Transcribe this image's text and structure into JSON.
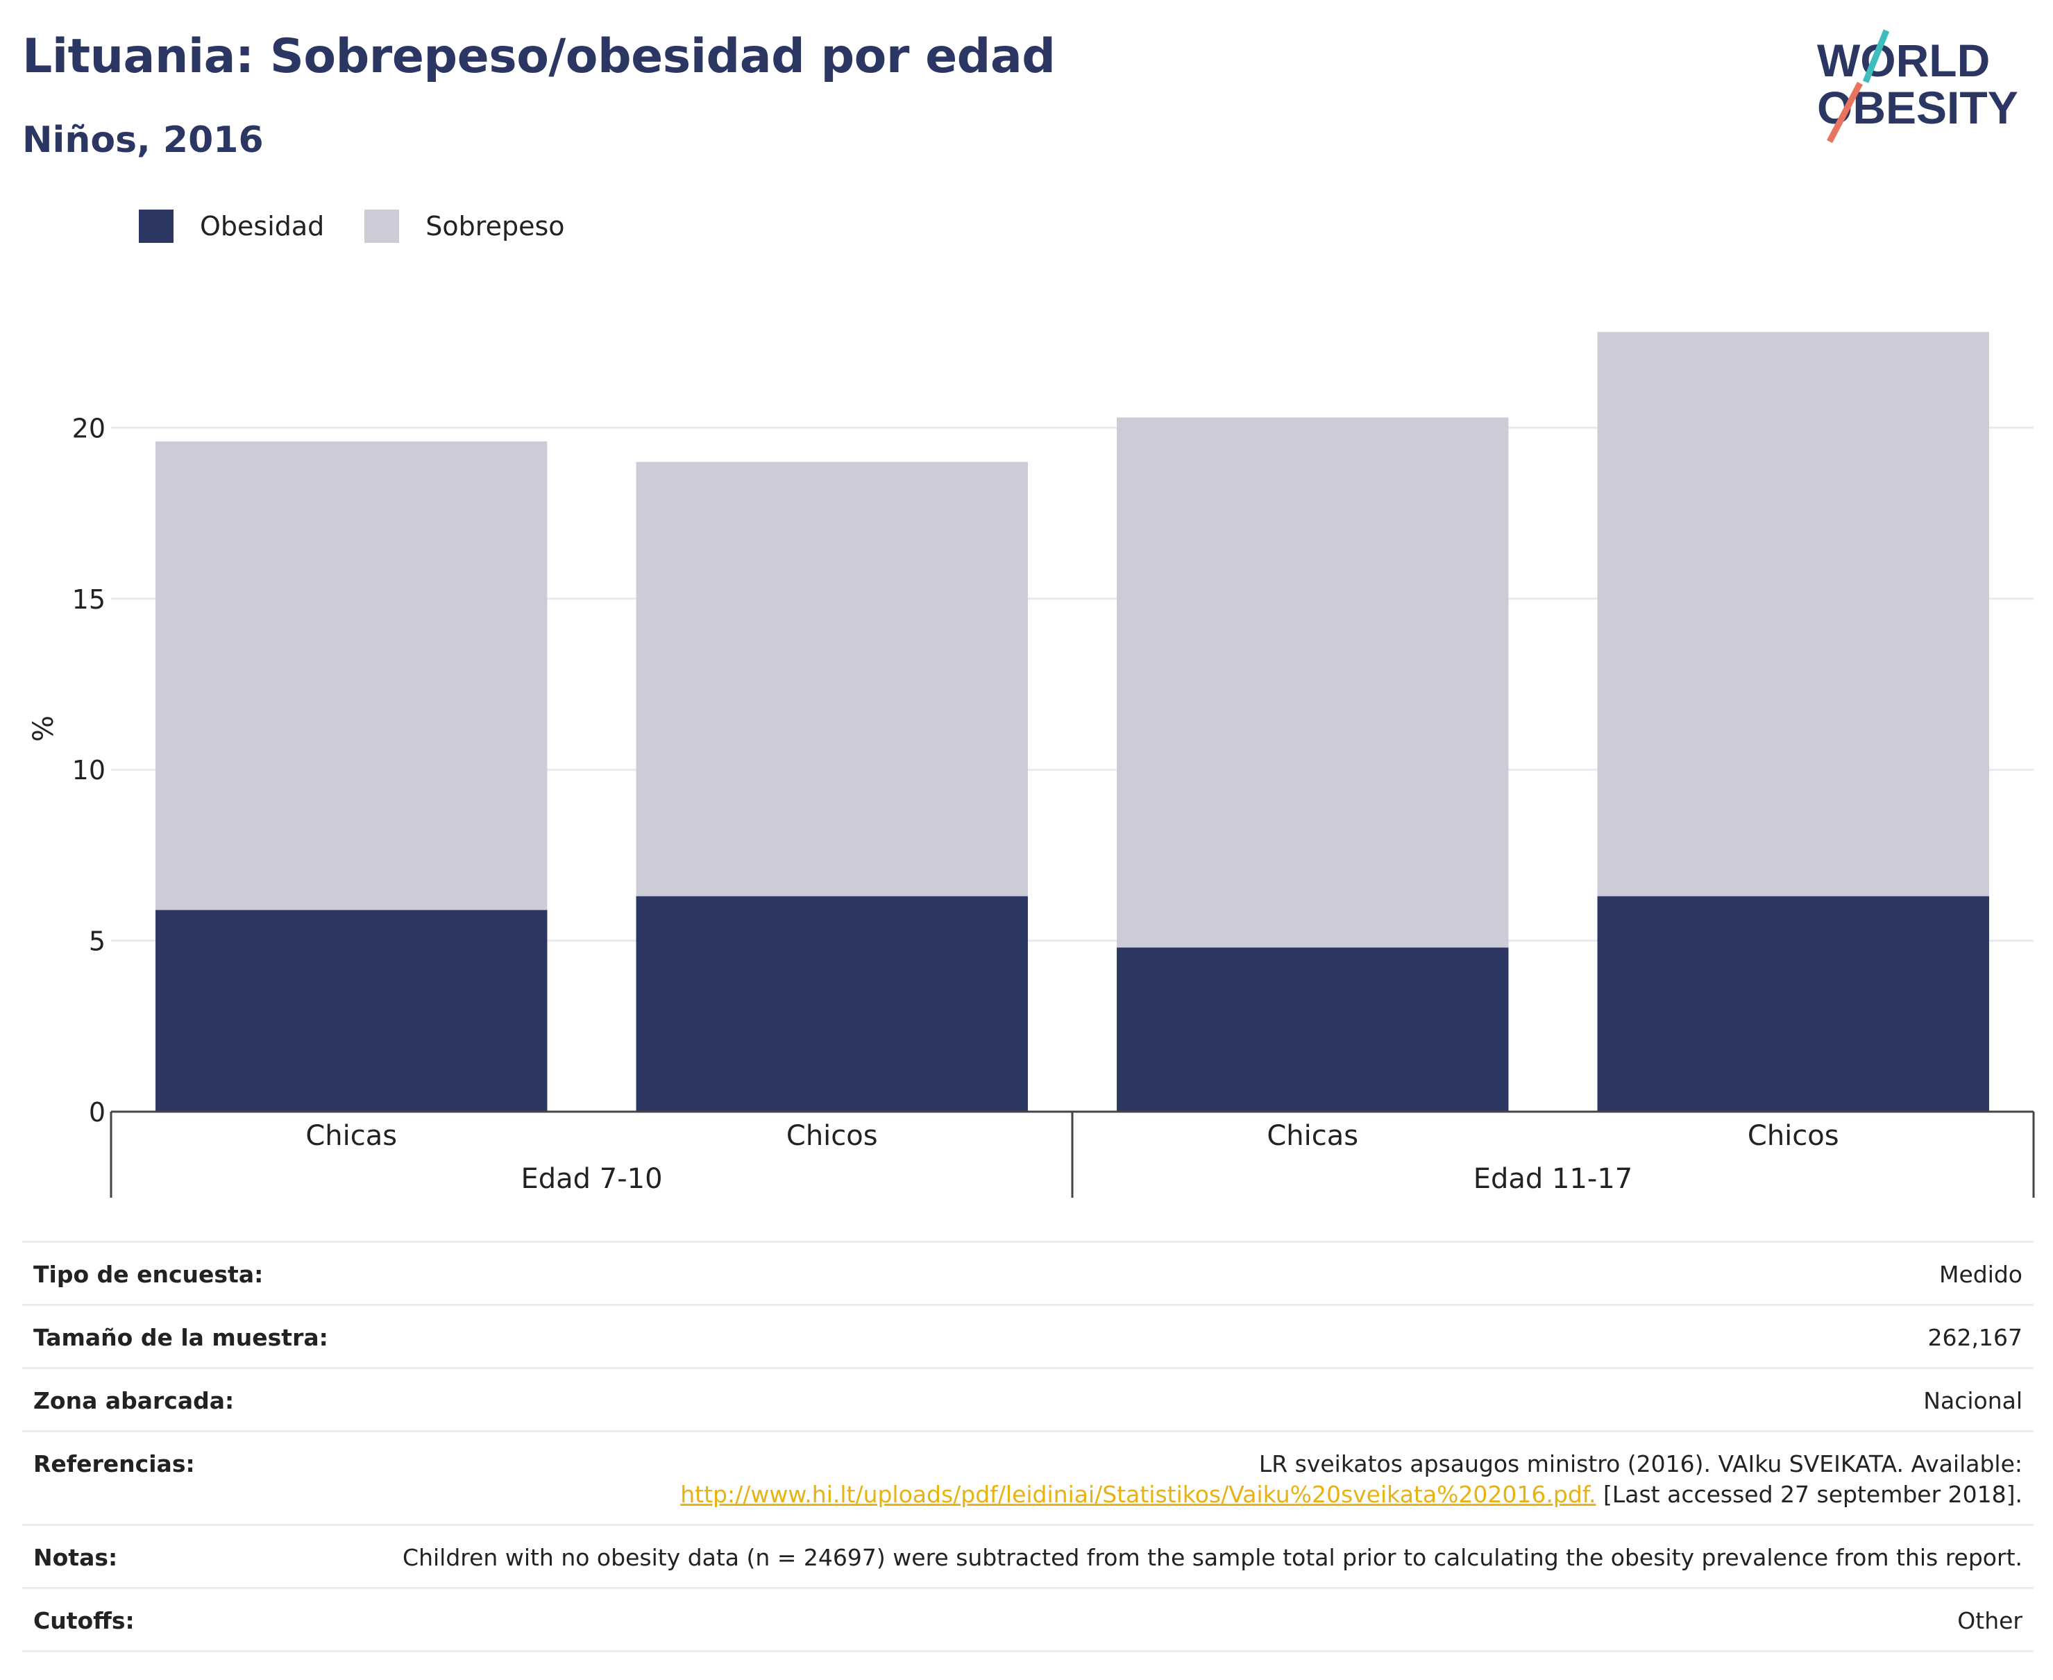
{
  "title": "Lituania: Sobrepeso/obesidad por edad",
  "subtitle": "Niños, 2016",
  "logo": {
    "line1": "WORLD",
    "line2": "OBESITY"
  },
  "colors": {
    "obesidad": "#2b3663",
    "sobrepeso": "#cbccd8",
    "title": "#2b3663",
    "link": "#e8b210",
    "logo_teal": "#3fbdbd",
    "logo_red": "#e8735f"
  },
  "legend": [
    {
      "label": "Obesidad",
      "color": "#2b3663"
    },
    {
      "label": "Sobrepeso",
      "color": "#cbccd8"
    }
  ],
  "chart_data": {
    "type": "bar",
    "stacked": true,
    "categories": [
      "Chicas",
      "Chicos",
      "Chicas",
      "Chicos"
    ],
    "groups": [
      {
        "label": "Edad 7-10",
        "members": [
          0,
          1
        ]
      },
      {
        "label": "Edad 11-17",
        "members": [
          2,
          3
        ]
      }
    ],
    "series": [
      {
        "name": "Obesidad",
        "values": [
          5.9,
          6.3,
          4.8,
          6.3
        ]
      },
      {
        "name": "Sobrepeso",
        "values": [
          13.7,
          12.7,
          15.5,
          16.5
        ]
      }
    ],
    "ylabel": "%",
    "ylim": [
      0,
      25
    ],
    "yticks": [
      0,
      5,
      10,
      15,
      20
    ],
    "grid": true,
    "legend_position": "top-left"
  },
  "info": [
    {
      "label": "Tipo de encuesta:",
      "value": "Medido"
    },
    {
      "label": "Tamaño de la muestra:",
      "value": "262,167"
    },
    {
      "label": "Zona abarcada:",
      "value": "Nacional"
    },
    {
      "label": "Referencias:",
      "value_line1": "LR sveikatos apsaugos ministro (2016). VAIku SVEIKATA. Available:",
      "link": "http://www.hi.lt/uploads/pdf/leidiniai/Statistikos/Vaiku%20sveikata%202016.pdf.",
      "value_suffix": " [Last accessed 27 september 2018]."
    },
    {
      "label": "Notas:",
      "value": "Children with no obesity data (n = 24697) were subtracted from the sample total prior to calculating the obesity prevalence from this report."
    },
    {
      "label": "Cutoffs:",
      "value": "Other"
    }
  ]
}
